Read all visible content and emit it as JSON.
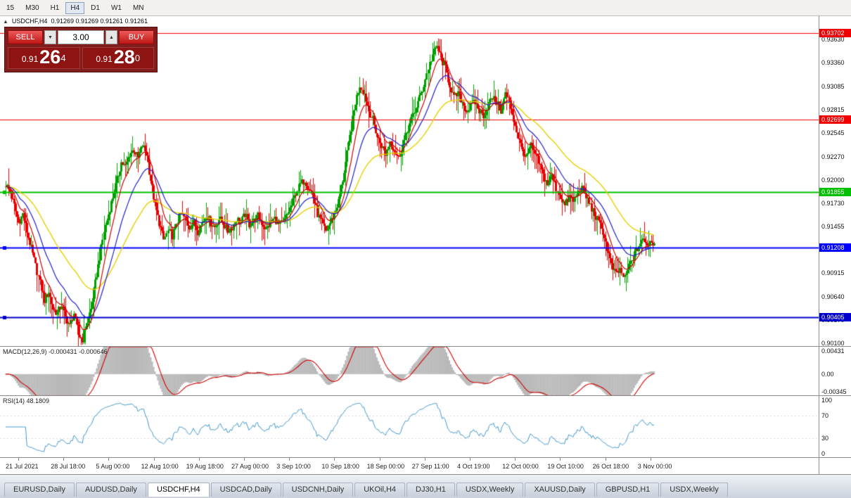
{
  "toolbar": {
    "timeframes": [
      "15",
      "M30",
      "H1",
      "H4",
      "D1",
      "W1",
      "MN"
    ],
    "active": "H4"
  },
  "chart": {
    "collapse_icon": "▲",
    "title": "USDCHF,H4",
    "ohlc": "0.91269 0.91269 0.91261 0.91261"
  },
  "trade_panel": {
    "sell_label": "SELL",
    "buy_label": "BUY",
    "volume": "3.00",
    "down_arrow": "▼",
    "up_arrow": "▲",
    "sell_price": {
      "main": "0.91",
      "big": "26",
      "sup": "4"
    },
    "buy_price": {
      "main": "0.91",
      "big": "28",
      "sup": "0"
    }
  },
  "price_axis": {
    "labels": [
      "0.93630",
      "0.93360",
      "0.93085",
      "0.92815",
      "0.92545",
      "0.92270",
      "0.92000",
      "0.91730",
      "0.91455",
      "0.91185",
      "0.90915",
      "0.90640",
      "0.90370",
      "0.90100"
    ]
  },
  "indicators": {
    "macd": {
      "label": "MACD(12,26,9) -0.000431 -0.000646",
      "axis": [
        "0.00431",
        "0.00",
        "-0.00345"
      ]
    },
    "rsi": {
      "label": "RSI(14) 48.1809",
      "axis": [
        "100",
        "70",
        "30",
        "0"
      ]
    }
  },
  "time_axis": [
    "21 Jul 2021",
    "28 Jul 18:00",
    "5 Aug 00:00",
    "12 Aug 10:00",
    "19 Aug 18:00",
    "27 Aug 00:00",
    "3 Sep 10:00",
    "10 Sep 18:00",
    "18 Sep 00:00",
    "27 Sep 11:00",
    "4 Oct 19:00",
    "12 Oct 00:00",
    "19 Oct 10:00",
    "26 Oct 18:00",
    "3 Nov 00:00"
  ],
  "tabs": {
    "items": [
      "EURUSD,Daily",
      "AUDUSD,Daily",
      "USDCHF,H4",
      "USDCAD,Daily",
      "USDCNH,Daily",
      "UKOil,H4",
      "DJ30,H1",
      "USDX,Weekly",
      "XAUUSD,Daily",
      "GBPUSD,H1",
      "USDX,Weekly"
    ],
    "active_index": 2
  },
  "chart_data": {
    "type": "candlestick",
    "symbol": "USDCHF",
    "timeframe": "H4",
    "price_min": 0.9006,
    "price_max": 0.939,
    "close": 0.91261,
    "rsi_last": 48.1809,
    "macd_values": [
      -0.000431,
      -0.000646
    ],
    "macd_range": [
      -0.00345,
      0.00431
    ],
    "levels": [
      {
        "price": 0.93702,
        "color": "#f00000",
        "label": "0.93702",
        "width": 1
      },
      {
        "price": 0.92699,
        "color": "#f00000",
        "label": "0.92699",
        "width": 1
      },
      {
        "price": 0.91855,
        "color": "#00c000",
        "label": "0.91855",
        "width": 2
      },
      {
        "price": 0.91208,
        "color": "#0000ff",
        "label": "0.91208",
        "width": 2
      },
      {
        "price": 0.90405,
        "color": "#0000cc",
        "label": "0.90405",
        "width": 2
      }
    ],
    "anchors": [
      0.9195,
      0.9185,
      0.917,
      0.915,
      0.916,
      0.914,
      0.912,
      0.91,
      0.908,
      0.906,
      0.907,
      0.905,
      0.9045,
      0.9055,
      0.904,
      0.903,
      0.9045,
      0.902,
      0.9015,
      0.9035,
      0.905,
      0.908,
      0.911,
      0.914,
      0.916,
      0.918,
      0.92,
      0.922,
      0.9215,
      0.923,
      0.9235,
      0.9225,
      0.924,
      0.923,
      0.92,
      0.917,
      0.915,
      0.913,
      0.914,
      0.9135,
      0.915,
      0.916,
      0.9155,
      0.9145,
      0.915,
      0.914,
      0.915,
      0.916,
      0.915,
      0.9145,
      0.9155,
      0.915,
      0.914,
      0.9145,
      0.9155,
      0.915,
      0.916,
      0.9148,
      0.9152,
      0.9158,
      0.915,
      0.9142,
      0.915,
      0.9155,
      0.9148,
      0.915,
      0.916,
      0.917,
      0.9185,
      0.9195,
      0.92,
      0.919,
      0.918,
      0.916,
      0.915,
      0.914,
      0.915,
      0.916,
      0.9175,
      0.92,
      0.923,
      0.926,
      0.929,
      0.931,
      0.93,
      0.928,
      0.927,
      0.925,
      0.924,
      0.923,
      0.9245,
      0.9235,
      0.9225,
      0.924,
      0.9255,
      0.927,
      0.928,
      0.9295,
      0.931,
      0.933,
      0.9345,
      0.9355,
      0.934,
      0.933,
      0.931,
      0.9295,
      0.93,
      0.929,
      0.928,
      0.9285,
      0.929,
      0.928,
      0.9275,
      0.9285,
      0.9295,
      0.929,
      0.928,
      0.93,
      0.929,
      0.927,
      0.925,
      0.9235,
      0.9225,
      0.924,
      0.923,
      0.922,
      0.9205,
      0.9195,
      0.9205,
      0.919,
      0.918,
      0.917,
      0.918,
      0.9175,
      0.9185,
      0.919,
      0.918,
      0.917,
      0.916,
      0.915,
      0.914,
      0.912,
      0.91,
      0.909,
      0.9095,
      0.9085,
      0.91,
      0.911,
      0.912,
      0.913,
      0.9125,
      0.9128,
      0.9126
    ],
    "upsample": 3,
    "noise": 0.0009,
    "wick": 0.002,
    "ma_periods": {
      "fast": 10,
      "mid": 24,
      "slow": 56
    },
    "colors": {
      "up": "#00a000",
      "down": "#e80000",
      "ma_fast": "#cc0000",
      "ma_mid": "#2020cc",
      "ma_slow": "#e6d000",
      "macd_hist": "#b9b9b9",
      "macd_signal": "#d00000",
      "rsi_line": "#3f97cc"
    }
  }
}
